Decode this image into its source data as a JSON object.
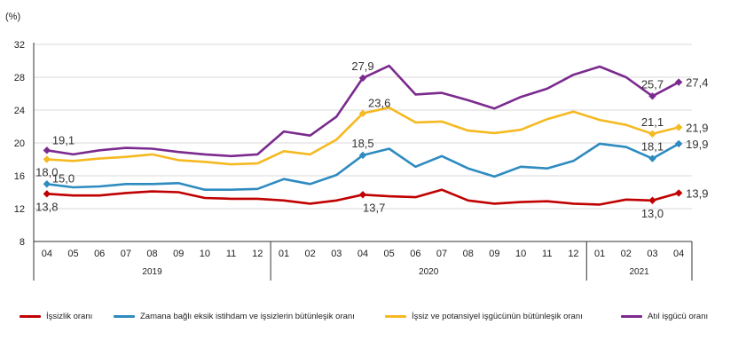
{
  "chart_data": {
    "type": "line",
    "ylabel": "(%)",
    "ylim": [
      8,
      32
    ],
    "yticks": [
      8,
      12,
      16,
      20,
      24,
      28,
      32
    ],
    "categories": [
      "04",
      "05",
      "06",
      "07",
      "08",
      "09",
      "10",
      "11",
      "12",
      "01",
      "02",
      "03",
      "04",
      "05",
      "06",
      "07",
      "08",
      "09",
      "10",
      "11",
      "12",
      "01",
      "02",
      "03",
      "04"
    ],
    "years": [
      {
        "label": "2019",
        "first": 0,
        "last": 8
      },
      {
        "label": "2020",
        "first": 9,
        "last": 20
      },
      {
        "label": "2021",
        "first": 21,
        "last": 24
      }
    ],
    "grid": "horizontal",
    "legend_position": "bottom",
    "series": [
      {
        "name": "İşsizlik oranı",
        "color": "#c00000",
        "values": [
          13.8,
          13.6,
          13.6,
          13.9,
          14.1,
          14.0,
          13.3,
          13.2,
          13.2,
          13.0,
          12.6,
          13.0,
          13.7,
          13.5,
          13.4,
          14.3,
          13.0,
          12.6,
          12.8,
          12.9,
          12.6,
          12.5,
          13.1,
          13.0,
          13.9
        ],
        "labels": [
          {
            "i": 0,
            "text": "13,8",
            "pos": "below"
          },
          {
            "i": 12,
            "text": "13,7",
            "pos": "below-right"
          },
          {
            "i": 23,
            "text": "13,0",
            "pos": "below"
          },
          {
            "i": 24,
            "text": "13,9",
            "pos": "right"
          }
        ]
      },
      {
        "name": "Zamana bağlı eksik istihdam ve işsizlerin bütünleşik oranı",
        "color": "#2e8bc0",
        "values": [
          15.0,
          14.6,
          14.7,
          15.0,
          15.0,
          15.1,
          14.3,
          14.3,
          14.4,
          15.6,
          15.0,
          16.1,
          18.5,
          19.3,
          17.1,
          18.4,
          16.9,
          15.9,
          17.1,
          16.9,
          17.8,
          19.9,
          19.5,
          18.1,
          19.9
        ],
        "labels": [
          {
            "i": 0,
            "text": "15,0",
            "pos": "right-up"
          },
          {
            "i": 12,
            "text": "18,5",
            "pos": "above"
          },
          {
            "i": 23,
            "text": "18,1",
            "pos": "above"
          },
          {
            "i": 24,
            "text": "19,9",
            "pos": "right"
          }
        ]
      },
      {
        "name": "İşsiz ve potansiyel işgücünün bütünleşik oranı",
        "color": "#f5b921",
        "values": [
          18.0,
          17.8,
          18.1,
          18.3,
          18.6,
          17.9,
          17.7,
          17.4,
          17.5,
          19.0,
          18.6,
          20.4,
          23.6,
          24.3,
          22.5,
          22.6,
          21.5,
          21.2,
          21.6,
          22.9,
          23.8,
          22.8,
          22.2,
          21.1,
          21.9
        ],
        "labels": [
          {
            "i": 0,
            "text": "18,0",
            "pos": "below"
          },
          {
            "i": 12,
            "text": "23,6",
            "pos": "above-right"
          },
          {
            "i": 23,
            "text": "21,1",
            "pos": "above"
          },
          {
            "i": 24,
            "text": "21,9",
            "pos": "right"
          }
        ]
      },
      {
        "name": "Atıl işgücü oranı",
        "color": "#7b2a8e",
        "values": [
          19.1,
          18.6,
          19.1,
          19.4,
          19.3,
          18.9,
          18.6,
          18.4,
          18.6,
          21.4,
          20.9,
          23.2,
          27.9,
          29.4,
          25.9,
          26.1,
          25.2,
          24.2,
          25.6,
          26.6,
          28.3,
          29.3,
          28.0,
          25.7,
          27.4
        ],
        "labels": [
          {
            "i": 0,
            "text": "19,1",
            "pos": "above-right"
          },
          {
            "i": 12,
            "text": "27,9",
            "pos": "above"
          },
          {
            "i": 23,
            "text": "25,7",
            "pos": "above"
          },
          {
            "i": 24,
            "text": "27,4",
            "pos": "right"
          }
        ]
      }
    ]
  }
}
